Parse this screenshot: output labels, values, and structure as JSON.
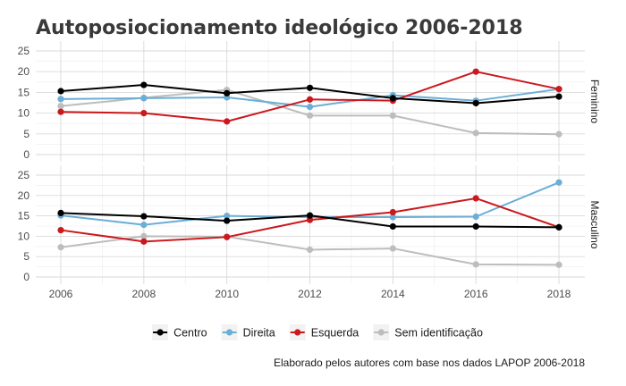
{
  "chart_data": {
    "type": "line",
    "title": "Autoposiocionamento ideológico 2006-2018",
    "caption": "Elaborado pelos autores com base nos dados LAPOP 2006-2018",
    "x": [
      2006,
      2008,
      2010,
      2012,
      2014,
      2016,
      2018
    ],
    "x_ticks": [
      "2006",
      "2008",
      "2010",
      "2012",
      "2014",
      "2016",
      "2018"
    ],
    "ylim": [
      0,
      25
    ],
    "y_ticks": [
      "0",
      "5",
      "10",
      "15",
      "20",
      "25"
    ],
    "grid": true,
    "legend_position": "bottom",
    "colors": {
      "Centro": "#000000",
      "Direita": "#6baed6",
      "Esquerda": "#cb181d",
      "Sem identificação": "#bdbdbd"
    },
    "series_order": [
      "Centro",
      "Direita",
      "Esquerda",
      "Sem identificação"
    ],
    "panels": [
      {
        "name": "Feminino",
        "series": [
          {
            "name": "Centro",
            "values": [
              15.3,
              16.8,
              14.8,
              16.1,
              13.6,
              12.4,
              14.0
            ]
          },
          {
            "name": "Direita",
            "values": [
              13.4,
              13.6,
              13.8,
              11.5,
              14.3,
              13.0,
              15.8
            ]
          },
          {
            "name": "Esquerda",
            "values": [
              10.3,
              10.0,
              8.0,
              13.3,
              13.0,
              20.0,
              15.8
            ]
          },
          {
            "name": "Sem identificação",
            "values": [
              11.7,
              13.7,
              15.6,
              9.4,
              9.4,
              5.2,
              4.9
            ]
          }
        ]
      },
      {
        "name": "Masculino",
        "series": [
          {
            "name": "Centro",
            "values": [
              15.7,
              14.9,
              13.8,
              15.1,
              12.4,
              12.4,
              12.2
            ]
          },
          {
            "name": "Direita",
            "values": [
              15.1,
              12.8,
              15.0,
              14.7,
              14.7,
              14.8,
              23.2
            ]
          },
          {
            "name": "Esquerda",
            "values": [
              11.5,
              8.7,
              9.8,
              14.0,
              15.9,
              19.3,
              12.2
            ]
          },
          {
            "name": "Sem identificação",
            "values": [
              7.3,
              10.0,
              9.9,
              6.7,
              7.0,
              3.1,
              3.0
            ]
          }
        ]
      }
    ]
  }
}
